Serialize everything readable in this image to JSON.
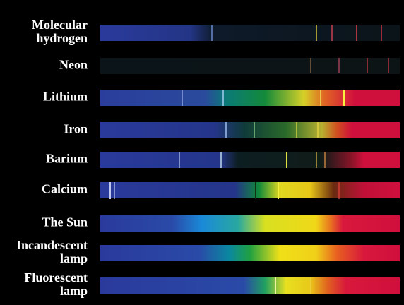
{
  "spectra": [
    [
      "Molecular",
      "hydrogen"
    ],
    [
      "Neon"
    ],
    [
      "Lithium"
    ],
    [
      "Iron"
    ],
    [
      "Barium"
    ],
    [
      "Calcium"
    ],
    [
      "The Sun"
    ],
    [
      "Incandescent",
      "lamp"
    ],
    [
      "Fluorescent",
      "lamp"
    ]
  ]
}
